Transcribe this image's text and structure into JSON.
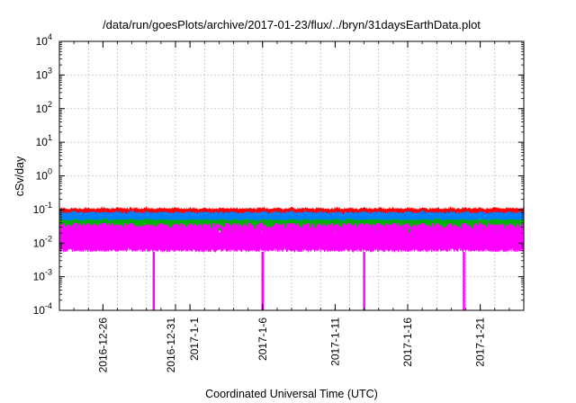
{
  "chart_data": {
    "type": "line",
    "title": "/data/run/goesPlots/archive/2017-01-23/flux/../bryn/31daysEarthData.plot",
    "xlabel": "Coordinated Universal Time (UTC)",
    "ylabel": "cSv/day",
    "yscale": "log",
    "ylim": [
      0.0001,
      10000
    ],
    "xlim": [
      "2016-12-23",
      "2017-01-24"
    ],
    "grid": true,
    "legend": "none",
    "y_ticks": [
      {
        "value": 0.0001,
        "mantissa": "10",
        "exp": "-4"
      },
      {
        "value": 0.001,
        "mantissa": "10",
        "exp": "-3"
      },
      {
        "value": 0.01,
        "mantissa": "10",
        "exp": "-2"
      },
      {
        "value": 0.1,
        "mantissa": "10",
        "exp": "-1"
      },
      {
        "value": 1,
        "mantissa": "10",
        "exp": "0"
      },
      {
        "value": 10,
        "mantissa": "10",
        "exp": "1"
      },
      {
        "value": 100,
        "mantissa": "10",
        "exp": "2"
      },
      {
        "value": 1000,
        "mantissa": "10",
        "exp": "3"
      },
      {
        "value": 10000,
        "mantissa": "10",
        "exp": "4"
      }
    ],
    "x_ticks": [
      {
        "date": "2016-12-26",
        "label": "2016-12-26"
      },
      {
        "date": "2016-12-31",
        "label": "2016-12-31"
      },
      {
        "date": "2017-01-01",
        "label": "2017-1-1"
      },
      {
        "date": "2017-01-06",
        "label": "2017-1-6"
      },
      {
        "date": "2017-01-11",
        "label": "2017-1-11"
      },
      {
        "date": "2017-01-16",
        "label": "2017-1-16"
      },
      {
        "date": "2017-01-21",
        "label": "2017-1-21"
      }
    ],
    "series": [
      {
        "color": "#ff0000",
        "center": 0.075,
        "upper": 0.11,
        "lower": 0.05
      },
      {
        "color": "#0080ff",
        "center": 0.055,
        "upper": 0.085,
        "lower": 0.03
      },
      {
        "color": "#00b000",
        "center": 0.035,
        "upper": 0.05,
        "lower": 0.02
      },
      {
        "color": "#ff00ff",
        "center": 0.012,
        "upper": 0.04,
        "lower": 0.0055
      }
    ],
    "dropouts": [
      "2016-12-29T12:00",
      "2017-01-06T00:00",
      "2017-01-13T00:00",
      "2017-01-19T21:00"
    ],
    "dropout_value": 0.0001,
    "period_days": 1
  }
}
